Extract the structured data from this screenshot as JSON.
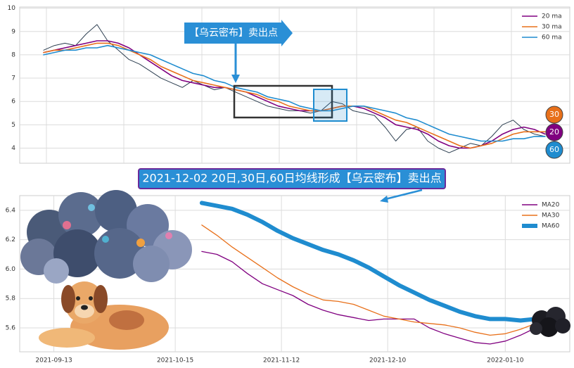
{
  "chart_data": [
    {
      "type": "line",
      "annotation": "【乌云密布】卖出点",
      "values": [
        8.2,
        8.4,
        8.5,
        8.4,
        8.9,
        9.3,
        8.6,
        8.2,
        7.8,
        7.6,
        7.3,
        7.0,
        6.8,
        6.6,
        6.9,
        6.7,
        6.5,
        6.6,
        6.4,
        6.2,
        6.0,
        5.8,
        5.7,
        5.6,
        5.6,
        5.5,
        5.6,
        6.0,
        5.9,
        5.6,
        5.5,
        5.4,
        4.9,
        4.3,
        4.8,
        4.9,
        4.3,
        4.0,
        3.8,
        4.0,
        4.2,
        4.1,
        4.5,
        5.0,
        5.2,
        4.8,
        4.6,
        4.5
      ],
      "color": "#2c3e50",
      "series": [
        {
          "name": "20 ma",
          "color": "#800080",
          "values": [
            8.1,
            8.2,
            8.3,
            8.4,
            8.5,
            8.6,
            8.6,
            8.5,
            8.3,
            8.0,
            7.7,
            7.4,
            7.1,
            6.9,
            6.8,
            6.7,
            6.6,
            6.6,
            6.5,
            6.4,
            6.2,
            6.0,
            5.8,
            5.7,
            5.6,
            5.6,
            5.6,
            5.7,
            5.8,
            5.8,
            5.7,
            5.5,
            5.3,
            5.0,
            4.9,
            4.8,
            4.6,
            4.3,
            4.1,
            4.0,
            4.0,
            4.1,
            4.3,
            4.6,
            4.8,
            4.9,
            4.8,
            4.6
          ]
        },
        {
          "name": "30 ma",
          "color": "#e8701a",
          "values": [
            8.1,
            8.2,
            8.2,
            8.3,
            8.4,
            8.5,
            8.5,
            8.4,
            8.2,
            8.0,
            7.8,
            7.5,
            7.3,
            7.1,
            6.9,
            6.8,
            6.7,
            6.6,
            6.5,
            6.4,
            6.3,
            6.1,
            6.0,
            5.8,
            5.7,
            5.6,
            5.6,
            5.7,
            5.8,
            5.8,
            5.8,
            5.6,
            5.4,
            5.2,
            5.1,
            4.9,
            4.7,
            4.5,
            4.3,
            4.1,
            4.0,
            4.1,
            4.2,
            4.4,
            4.6,
            4.7,
            4.7,
            4.7
          ]
        },
        {
          "name": "60 ma",
          "color": "#1f8ccf",
          "values": [
            8.0,
            8.1,
            8.2,
            8.2,
            8.3,
            8.3,
            8.4,
            8.3,
            8.2,
            8.1,
            8.0,
            7.8,
            7.6,
            7.4,
            7.2,
            7.1,
            6.9,
            6.8,
            6.6,
            6.5,
            6.4,
            6.2,
            6.1,
            6.0,
            5.8,
            5.7,
            5.6,
            5.6,
            5.7,
            5.8,
            5.8,
            5.7,
            5.6,
            5.5,
            5.3,
            5.2,
            5.0,
            4.8,
            4.6,
            4.5,
            4.4,
            4.3,
            4.3,
            4.3,
            4.4,
            4.4,
            4.5,
            4.5
          ]
        }
      ],
      "badges": [
        {
          "label": "30",
          "color": "#e8701a"
        },
        {
          "label": "20",
          "color": "#800080"
        },
        {
          "label": "60",
          "color": "#1f8ccf"
        }
      ],
      "ylim": [
        3.35,
        10.05
      ],
      "yticks": [
        4,
        5,
        6,
        7,
        8,
        9,
        10
      ],
      "grid": true,
      "legend": "upper right"
    },
    {
      "type": "line",
      "annotation": "2021-12-02 20日,30日,60日均线形成【乌云密布】卖出点",
      "x": [
        "2021-10-22",
        "2021-10-26",
        "2021-10-30",
        "2021-11-03",
        "2021-11-07",
        "2021-11-11",
        "2021-11-15",
        "2021-11-19",
        "2021-11-23",
        "2021-11-27",
        "2021-12-01",
        "2021-12-05",
        "2021-12-09",
        "2021-12-13",
        "2021-12-17",
        "2021-12-21",
        "2021-12-25",
        "2021-12-29",
        "2022-01-02",
        "2022-01-06",
        "2022-01-10",
        "2022-01-14",
        "2022-01-18"
      ],
      "series": [
        {
          "name": "MA20",
          "color": "#800080",
          "values": [
            6.12,
            6.1,
            6.05,
            5.97,
            5.9,
            5.86,
            5.82,
            5.76,
            5.72,
            5.69,
            5.67,
            5.65,
            5.66,
            5.66,
            5.66,
            5.6,
            5.56,
            5.53,
            5.5,
            5.49,
            5.51,
            5.55,
            5.6
          ]
        },
        {
          "name": "MA30",
          "color": "#e8701a",
          "values": [
            6.3,
            6.23,
            6.15,
            6.08,
            6.01,
            5.94,
            5.88,
            5.83,
            5.79,
            5.78,
            5.76,
            5.72,
            5.68,
            5.66,
            5.64,
            5.63,
            5.62,
            5.6,
            5.57,
            5.55,
            5.56,
            5.59,
            5.63
          ]
        },
        {
          "name": "MA60",
          "color": "#1f8ccf",
          "values": [
            6.45,
            6.43,
            6.41,
            6.37,
            6.32,
            6.26,
            6.21,
            6.17,
            6.13,
            6.1,
            6.06,
            6.01,
            5.95,
            5.89,
            5.84,
            5.79,
            5.75,
            5.71,
            5.68,
            5.66,
            5.66,
            5.65,
            5.66
          ]
        }
      ],
      "xlim": [
        "2021-09-04",
        "2022-01-27"
      ],
      "xticks": [
        "2021-09-13",
        "2021-10-15",
        "2021-11-12",
        "2021-12-10",
        "2022-01-10"
      ],
      "ylim": [
        5.437,
        6.5
      ],
      "yticks": [
        6.4,
        6.2,
        {
          "value": 6,
          "label": "6.0"
        },
        5.8,
        5.6
      ],
      "grid": true,
      "legend": "upper right"
    }
  ]
}
